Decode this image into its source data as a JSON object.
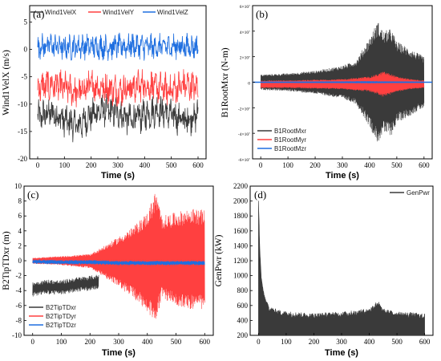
{
  "chart_data": [
    {
      "panel_label": "(a)",
      "type": "line",
      "xlabel": "Time (s)",
      "ylabel": "Wind1VelX (m/s)",
      "xlim": [
        -30,
        630
      ],
      "ylim": [
        -20,
        8
      ],
      "xticks": [
        "0",
        "100",
        "200",
        "300",
        "400",
        "500",
        "600"
      ],
      "yticks": [
        "-20",
        "-15",
        "-10",
        "-5",
        "0",
        "5"
      ],
      "legend_position": "top",
      "series": [
        {
          "name": "Wind1VelX",
          "color": "#3a3a3a",
          "mean": -12,
          "amp": 4.5,
          "x": [
            0,
            50,
            100,
            150,
            200,
            250,
            300,
            350,
            400,
            450,
            500,
            550,
            600
          ],
          "y": [
            -12.5,
            -11.5,
            -13,
            -14,
            -12,
            -11,
            -11.5,
            -13,
            -12,
            -11,
            -12,
            -13,
            -12
          ]
        },
        {
          "name": "Wind1VelY",
          "color": "#ff4040",
          "mean": -7,
          "amp": 4.5,
          "x": [
            0,
            50,
            100,
            150,
            200,
            250,
            300,
            350,
            400,
            450,
            500,
            550,
            600
          ],
          "y": [
            -7,
            -6.5,
            -7,
            -8,
            -6.5,
            -7,
            -7.5,
            -7,
            -6.5,
            -7,
            -7.5,
            -6.5,
            -7
          ]
        },
        {
          "name": "Wind1VelZ",
          "color": "#1f6fe0",
          "mean": 0.5,
          "amp": 3.5,
          "x": [
            0,
            50,
            100,
            150,
            200,
            250,
            300,
            350,
            400,
            450,
            500,
            550,
            600
          ],
          "y": [
            0.5,
            0.8,
            0.3,
            0.5,
            0.6,
            0.4,
            0.5,
            0.7,
            0.5,
            0.4,
            0.6,
            0.5,
            0.5
          ]
        }
      ]
    },
    {
      "panel_label": "(b)",
      "type": "line",
      "xlabel": "Time (s)",
      "ylabel": "B1RootMxr (N-m)",
      "xlim": [
        -30,
        630
      ],
      "ylim": [
        -60000000.0,
        60000000.0
      ],
      "xticks": [
        "0",
        "100",
        "200",
        "300",
        "400",
        "500",
        "600"
      ],
      "yticks": [
        "-6×10⁷",
        "-4×10⁷",
        "-2×10⁷",
        "0",
        "2×10⁷",
        "4×10⁷",
        "6×10⁷"
      ],
      "legend_position": "bottom-left",
      "series": [
        {
          "name": "B1RootMxr",
          "color": "#3a3a3a",
          "x": [
            0,
            100,
            200,
            300,
            350,
            400,
            430,
            450,
            480,
            500,
            550,
            600
          ],
          "envelope": [
            6000000.0,
            7000000.0,
            9000000.0,
            13000000.0,
            17000000.0,
            35000000.0,
            48000000.0,
            40000000.0,
            42000000.0,
            32000000.0,
            26000000.0,
            20000000.0
          ]
        },
        {
          "name": "B1RootMyr",
          "color": "#ff4040",
          "x": [
            0,
            100,
            200,
            300,
            350,
            400,
            430,
            450,
            480,
            500,
            550,
            600
          ],
          "envelope": [
            3000000.0,
            3000000.0,
            3500000.0,
            4000000.0,
            5000000.0,
            6000000.0,
            8000000.0,
            10000000.0,
            8000000.0,
            6000000.0,
            4000000.0,
            3000000.0
          ]
        },
        {
          "name": "B1RootMzr",
          "color": "#1f6fe0",
          "x": [
            0,
            100,
            200,
            300,
            400,
            500,
            600
          ],
          "envelope": [
            500000.0,
            500000.0,
            600000.0,
            700000.0,
            800000.0,
            600000.0,
            500000.0
          ]
        }
      ]
    },
    {
      "panel_label": "(c)",
      "type": "line",
      "xlabel": "Time (s)",
      "ylabel": "B2TipTDxr (m)",
      "xlim": [
        -30,
        630
      ],
      "ylim": [
        -10,
        10
      ],
      "xticks": [
        "0",
        "100",
        "200",
        "300",
        "400",
        "500",
        "600"
      ],
      "yticks": [
        "-10",
        "-8",
        "-6",
        "-4",
        "-2",
        "0",
        "2",
        "4",
        "6",
        "8",
        "10"
      ],
      "legend_position": "bottom-left",
      "series": [
        {
          "name": "B2TipTDxr",
          "color": "#3a3a3a",
          "x": [
            0,
            50,
            100,
            150,
            200,
            230
          ],
          "y": [
            -3.8,
            -3.5,
            -3.6,
            -3.2,
            -3.0,
            -2.8
          ],
          "amp": 1.0
        },
        {
          "name": "B2TipTDyr",
          "color": "#ff4040",
          "x": [
            0,
            100,
            200,
            250,
            300,
            350,
            400,
            430,
            450,
            500,
            550,
            600
          ],
          "upper": [
            0.4,
            0.6,
            0.9,
            2.0,
            3.2,
            4.5,
            6.5,
            9.5,
            6.0,
            6.5,
            7.0,
            6.8
          ],
          "lower": [
            -0.4,
            -0.6,
            -1.0,
            -2.2,
            -3.5,
            -5.0,
            -7.0,
            -8.2,
            -5.0,
            -6.0,
            -6.5,
            -6.5
          ]
        },
        {
          "name": "B2TipTDzr",
          "color": "#1f6fe0",
          "x": [
            0,
            100,
            200,
            300,
            400,
            500,
            600
          ],
          "y": [
            -0.1,
            -0.2,
            -0.2,
            -0.3,
            -0.3,
            -0.3,
            -0.3
          ],
          "amp": 0.3
        }
      ]
    },
    {
      "panel_label": "(d)",
      "type": "area",
      "xlabel": "Time (s)",
      "ylabel": "GenPwr (kW)",
      "xlim": [
        -30,
        630
      ],
      "ylim": [
        200,
        2300
      ],
      "xticks": [
        "0",
        "100",
        "200",
        "300",
        "400",
        "500",
        "600"
      ],
      "yticks": [
        "200",
        "400",
        "600",
        "800",
        "1000",
        "1200",
        "1400",
        "1600",
        "1800",
        "2000",
        "2200"
      ],
      "legend_position": "top-right",
      "series": [
        {
          "name": "GenPwr",
          "color": "#3a3a3a",
          "x": [
            0,
            5,
            10,
            20,
            30,
            40,
            60,
            80,
            100,
            150,
            200,
            250,
            300,
            350,
            400,
            430,
            450,
            500,
            550,
            600
          ],
          "y": [
            2080,
            1400,
            1000,
            750,
            620,
            560,
            520,
            500,
            490,
            470,
            460,
            470,
            480,
            500,
            530,
            640,
            520,
            480,
            470,
            450
          ]
        }
      ]
    }
  ]
}
